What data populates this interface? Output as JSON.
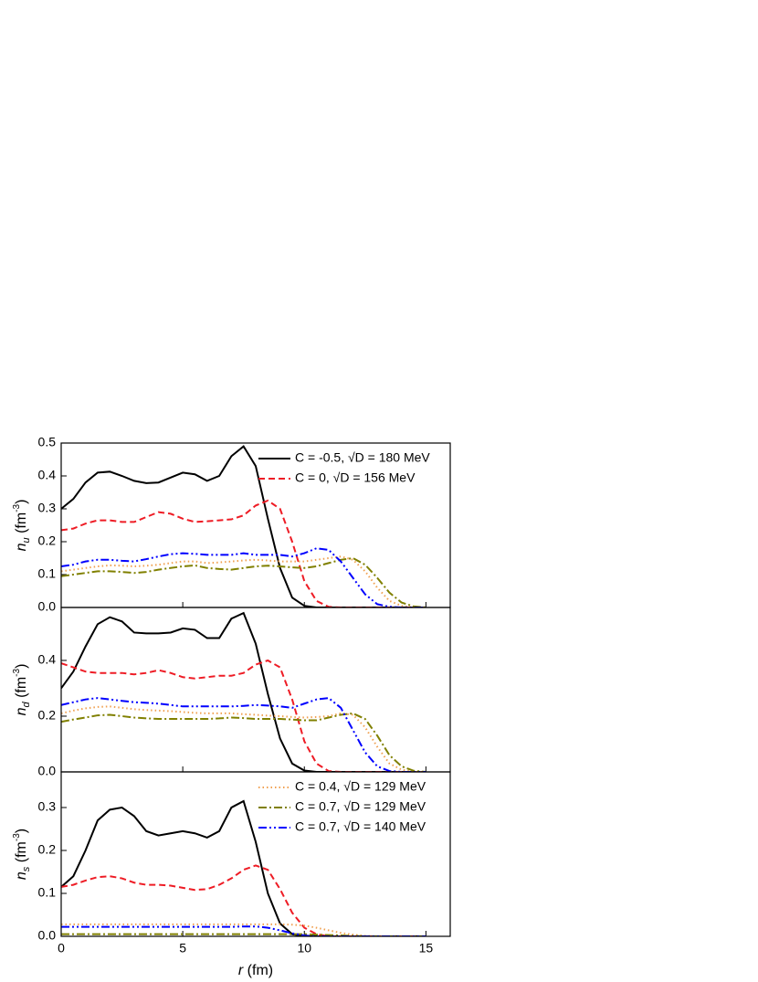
{
  "chart_data": [
    {
      "type": "line",
      "ylabel": {
        "main": "n",
        "sub": "u",
        "unit": " (fm",
        "sup": "-3",
        "end": ")"
      },
      "xlim": [
        0,
        16
      ],
      "xticks": [
        0,
        5,
        10,
        15
      ],
      "ylim": [
        0,
        0.5
      ],
      "yticks": [
        {
          "value": 0,
          "label": "0.0"
        },
        0.1,
        0.2,
        0.3,
        0.4,
        0.5
      ],
      "legend": "upper right",
      "x": [
        0,
        0.5,
        1,
        1.5,
        2,
        2.5,
        3,
        3.5,
        4,
        4.5,
        5,
        5.5,
        6,
        6.5,
        7,
        7.5,
        8,
        8.5,
        9,
        9.5,
        10,
        10.5,
        11,
        11.5,
        12,
        12.5,
        13,
        13.5,
        14,
        14.5,
        15
      ],
      "series": [
        {
          "name": "C = -0.5,  √D = 180 MeV",
          "color": "#000000",
          "style": "solid",
          "values": [
            0.3,
            0.33,
            0.38,
            0.41,
            0.413,
            0.4,
            0.385,
            0.378,
            0.38,
            0.395,
            0.41,
            0.405,
            0.385,
            0.4,
            0.46,
            0.49,
            0.43,
            0.27,
            0.12,
            0.03,
            0.005,
            0,
            0,
            0,
            0,
            0,
            0,
            0,
            0,
            0,
            0
          ]
        },
        {
          "name": "C = 0,  √D = 156 MeV",
          "color": "#ee1c25",
          "style": "dashed",
          "values": [
            0.235,
            0.24,
            0.255,
            0.265,
            0.265,
            0.26,
            0.26,
            0.275,
            0.29,
            0.285,
            0.27,
            0.26,
            0.262,
            0.265,
            0.268,
            0.28,
            0.31,
            0.325,
            0.3,
            0.2,
            0.08,
            0.02,
            0.002,
            0,
            0,
            0,
            0,
            0,
            0,
            0,
            0
          ]
        },
        {
          "color": "#f0a050",
          "style": "dotted",
          "values": [
            0.11,
            0.115,
            0.12,
            0.125,
            0.128,
            0.127,
            0.125,
            0.127,
            0.13,
            0.135,
            0.14,
            0.14,
            0.135,
            0.137,
            0.14,
            0.143,
            0.145,
            0.143,
            0.14,
            0.14,
            0.14,
            0.145,
            0.15,
            0.155,
            0.145,
            0.11,
            0.06,
            0.02,
            0.005,
            0,
            0
          ]
        },
        {
          "color": "#808000",
          "style": "dashdot",
          "values": [
            0.095,
            0.1,
            0.105,
            0.11,
            0.11,
            0.108,
            0.105,
            0.108,
            0.115,
            0.12,
            0.125,
            0.128,
            0.12,
            0.117,
            0.115,
            0.12,
            0.125,
            0.127,
            0.125,
            0.122,
            0.12,
            0.125,
            0.135,
            0.145,
            0.15,
            0.13,
            0.09,
            0.045,
            0.015,
            0.003,
            0
          ]
        },
        {
          "color": "#0000ff",
          "style": "dashdotdot",
          "values": [
            0.125,
            0.13,
            0.14,
            0.145,
            0.145,
            0.142,
            0.14,
            0.147,
            0.155,
            0.162,
            0.165,
            0.163,
            0.16,
            0.16,
            0.16,
            0.165,
            0.16,
            0.16,
            0.16,
            0.155,
            0.165,
            0.18,
            0.175,
            0.14,
            0.09,
            0.04,
            0.01,
            0.002,
            0,
            0,
            0
          ]
        }
      ]
    },
    {
      "type": "line",
      "ylabel": {
        "main": "n",
        "sub": "d",
        "unit": " (fm",
        "sup": "-3",
        "end": ")"
      },
      "xlim": [
        0,
        16
      ],
      "xticks": [
        0,
        5,
        10,
        15
      ],
      "ylim": [
        0,
        0.59
      ],
      "yticks": [
        {
          "value": 0,
          "label": "0.0"
        },
        0.2,
        0.4
      ],
      "x": [
        0,
        0.5,
        1,
        1.5,
        2,
        2.5,
        3,
        3.5,
        4,
        4.5,
        5,
        5.5,
        6,
        6.5,
        7,
        7.5,
        8,
        8.5,
        9,
        9.5,
        10,
        10.5,
        11,
        11.5,
        12,
        12.5,
        13,
        13.5,
        14,
        14.5,
        15
      ],
      "series": [
        {
          "color": "#000000",
          "style": "solid",
          "values": [
            0.3,
            0.36,
            0.45,
            0.53,
            0.555,
            0.54,
            0.5,
            0.497,
            0.497,
            0.5,
            0.515,
            0.51,
            0.48,
            0.48,
            0.55,
            0.57,
            0.46,
            0.28,
            0.12,
            0.03,
            0.005,
            0,
            0,
            0,
            0,
            0,
            0,
            0,
            0,
            0,
            0
          ]
        },
        {
          "color": "#ee1c25",
          "style": "dashed",
          "values": [
            0.39,
            0.375,
            0.36,
            0.355,
            0.355,
            0.355,
            0.35,
            0.355,
            0.365,
            0.355,
            0.34,
            0.335,
            0.34,
            0.345,
            0.345,
            0.355,
            0.385,
            0.4,
            0.375,
            0.26,
            0.11,
            0.03,
            0.003,
            0,
            0,
            0,
            0,
            0,
            0,
            0,
            0
          ]
        },
        {
          "color": "#f0a050",
          "style": "dotted",
          "values": [
            0.21,
            0.22,
            0.228,
            0.233,
            0.235,
            0.23,
            0.225,
            0.222,
            0.22,
            0.218,
            0.215,
            0.212,
            0.21,
            0.21,
            0.21,
            0.207,
            0.205,
            0.202,
            0.2,
            0.197,
            0.195,
            0.197,
            0.2,
            0.21,
            0.205,
            0.16,
            0.09,
            0.03,
            0.008,
            0,
            0
          ]
        },
        {
          "color": "#808000",
          "style": "dashdot",
          "values": [
            0.18,
            0.188,
            0.195,
            0.203,
            0.205,
            0.2,
            0.195,
            0.192,
            0.19,
            0.19,
            0.19,
            0.19,
            0.19,
            0.192,
            0.195,
            0.193,
            0.19,
            0.19,
            0.19,
            0.188,
            0.185,
            0.185,
            0.195,
            0.205,
            0.21,
            0.19,
            0.13,
            0.06,
            0.02,
            0.004,
            0
          ]
        },
        {
          "color": "#0000ff",
          "style": "dashdotdot",
          "values": [
            0.24,
            0.25,
            0.26,
            0.265,
            0.26,
            0.255,
            0.25,
            0.248,
            0.245,
            0.24,
            0.235,
            0.235,
            0.235,
            0.235,
            0.235,
            0.237,
            0.24,
            0.238,
            0.235,
            0.23,
            0.245,
            0.26,
            0.265,
            0.23,
            0.15,
            0.07,
            0.02,
            0.003,
            0,
            0,
            0
          ]
        }
      ]
    },
    {
      "type": "line",
      "ylabel": {
        "main": "n",
        "sub": "s",
        "unit": " (fm",
        "sup": "-3",
        "end": ")"
      },
      "xlabel": {
        "main": "r",
        "unit": " (fm)"
      },
      "xlim": [
        0,
        16
      ],
      "xticks": [
        0,
        5,
        10,
        15
      ],
      "ylim": [
        0,
        0.383
      ],
      "yticks": [
        {
          "value": 0,
          "label": "0.0"
        },
        0.1,
        0.2,
        0.3
      ],
      "legend": "upper right",
      "x": [
        0,
        0.5,
        1,
        1.5,
        2,
        2.5,
        3,
        3.5,
        4,
        4.5,
        5,
        5.5,
        6,
        6.5,
        7,
        7.5,
        8,
        8.5,
        9,
        9.5,
        10,
        10.5,
        11,
        11.5,
        12,
        12.5,
        13,
        13.5,
        14,
        14.5,
        15
      ],
      "series": [
        {
          "color": "#000000",
          "style": "solid",
          "values": [
            0.115,
            0.14,
            0.2,
            0.27,
            0.295,
            0.3,
            0.28,
            0.245,
            0.235,
            0.24,
            0.245,
            0.24,
            0.23,
            0.245,
            0.3,
            0.315,
            0.22,
            0.1,
            0.03,
            0.005,
            0,
            0,
            0,
            0,
            0,
            0,
            0,
            0,
            0,
            0,
            0
          ]
        },
        {
          "color": "#ee1c25",
          "style": "dashed",
          "values": [
            0.115,
            0.12,
            0.13,
            0.138,
            0.14,
            0.135,
            0.125,
            0.12,
            0.12,
            0.118,
            0.113,
            0.108,
            0.11,
            0.12,
            0.135,
            0.155,
            0.165,
            0.155,
            0.11,
            0.055,
            0.02,
            0.005,
            0,
            0,
            0,
            0,
            0,
            0,
            0,
            0,
            0
          ]
        },
        {
          "name": "C = 0.4,  √D = 129 MeV",
          "color": "#f0a050",
          "style": "dotted",
          "values": [
            0.028,
            0.028,
            0.028,
            0.028,
            0.028,
            0.028,
            0.028,
            0.028,
            0.028,
            0.028,
            0.028,
            0.028,
            0.028,
            0.028,
            0.028,
            0.028,
            0.028,
            0.028,
            0.028,
            0.027,
            0.025,
            0.02,
            0.014,
            0.008,
            0.004,
            0.001,
            0,
            0,
            0,
            0,
            0
          ]
        },
        {
          "name": "C = 0.7,  √D = 129 MeV",
          "color": "#808000",
          "style": "dashdot",
          "values": [
            0.005,
            0.005,
            0.005,
            0.005,
            0.005,
            0.005,
            0.005,
            0.005,
            0.005,
            0.005,
            0.005,
            0.005,
            0.005,
            0.005,
            0.005,
            0.005,
            0.005,
            0.005,
            0.005,
            0.005,
            0.005,
            0.004,
            0.003,
            0.002,
            0.001,
            0,
            0,
            0,
            0,
            0,
            0
          ]
        },
        {
          "name": "C = 0.7,  √D = 140 MeV",
          "color": "#0000ff",
          "style": "dashdotdot",
          "values": [
            0.022,
            0.022,
            0.022,
            0.022,
            0.022,
            0.022,
            0.022,
            0.022,
            0.022,
            0.022,
            0.022,
            0.022,
            0.022,
            0.022,
            0.022,
            0.023,
            0.023,
            0.02,
            0.014,
            0.007,
            0.002,
            0,
            0,
            0,
            0,
            0,
            0,
            0,
            0,
            0,
            0
          ]
        }
      ]
    }
  ]
}
